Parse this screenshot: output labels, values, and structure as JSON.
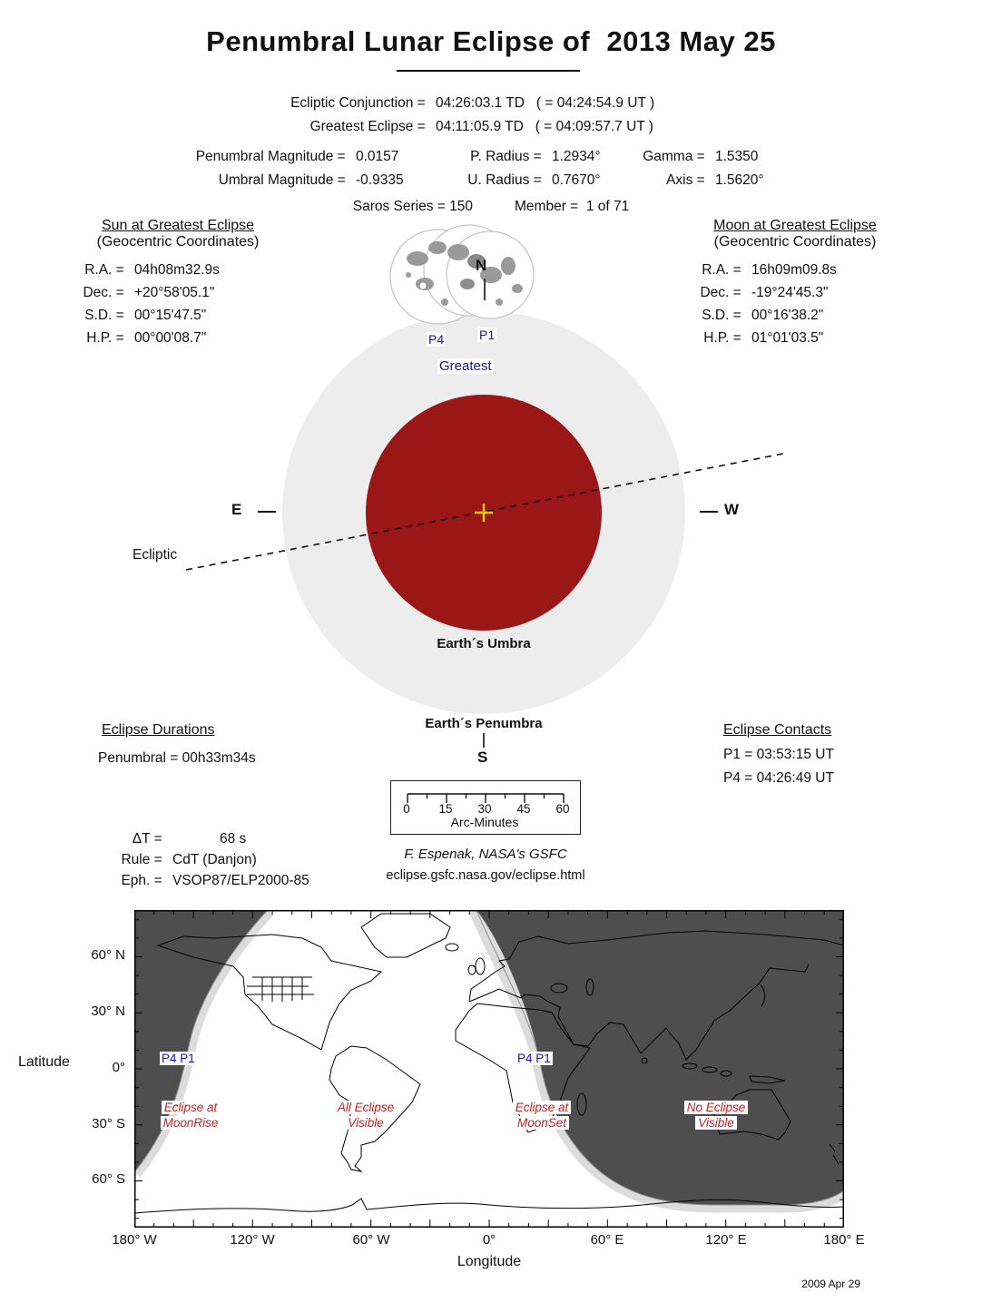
{
  "title": "Penumbral Lunar Eclipse of  2013 May 25",
  "conjunction": {
    "rows": [
      {
        "label": "Ecliptic Conjunction = ",
        "value": "04:26:03.1 TD   ( = 04:24:54.9 UT )"
      },
      {
        "label": "Greatest Eclipse = ",
        "value": "04:11:05.9 TD   ( = 04:09:57.7 UT )"
      }
    ]
  },
  "params": {
    "magnitude": [
      {
        "label": "Penumbral Magnitude = ",
        "value": "0.0157"
      },
      {
        "label": "Umbral Magnitude = ",
        "value": "-0.9335"
      }
    ],
    "radius": [
      {
        "label": "P. Radius = ",
        "value": "1.2934°"
      },
      {
        "label": "U. Radius = ",
        "value": "0.7670°"
      }
    ],
    "geometry": [
      {
        "label": "Gamma = ",
        "value": "1.5350"
      },
      {
        "label": "Axis = ",
        "value": "1.5620°"
      }
    ],
    "saros": "Saros Series = 150",
    "member": "Member =  1 of 71"
  },
  "sun": {
    "title": "Sun at Greatest Eclipse",
    "subtitle": "(Geocentric Coordinates)",
    "rows": [
      {
        "label": "R.A. = ",
        "value": "04h08m32.9s"
      },
      {
        "label": "Dec. = ",
        "value": "+20°58'05.1\""
      },
      {
        "label": "S.D. = ",
        "value": "00°15'47.5\""
      },
      {
        "label": "H.P. = ",
        "value": "00°00'08.7\""
      }
    ]
  },
  "moon": {
    "title": "Moon at Greatest Eclipse",
    "subtitle": "(Geocentric Coordinates)",
    "rows": [
      {
        "label": "R.A. = ",
        "value": "16h09m09.8s"
      },
      {
        "label": "Dec. = ",
        "value": "-19°24'45.3\""
      },
      {
        "label": "S.D. = ",
        "value": "00°16'38.2\""
      },
      {
        "label": "H.P. = ",
        "value": "01°01'03.5\""
      }
    ]
  },
  "diagram": {
    "compass": {
      "n": "N",
      "s": "S",
      "e": "E",
      "w": "W"
    },
    "contact_p4": "P4",
    "contact_p1": "P1",
    "greatest_label": "Greatest",
    "ecliptic_label": "Ecliptic",
    "umbra_label": "Earth´s Umbra",
    "penumbra_label": "Earth´s Penumbra",
    "umbra_color": "#9B1717",
    "penumbra_color": "#EDEDED",
    "center_cross_color": "#F0C800",
    "label_blue": "#1414B8"
  },
  "durations": {
    "title": "Eclipse Durations",
    "penumbral": "Penumbral = 00h33m34s"
  },
  "contacts": {
    "title": "Eclipse Contacts",
    "p1": "P1 = 03:53:15 UT",
    "p4": "P4 = 04:26:49 UT"
  },
  "scalebar": {
    "ticks": [
      "0",
      "15",
      "30",
      "45",
      "60"
    ],
    "unit": "Arc-Minutes"
  },
  "computation": {
    "rows": [
      {
        "label": "ΔT = ",
        "value": "68 s"
      },
      {
        "label": "Rule = ",
        "value": "CdT (Danjon)"
      },
      {
        "label": "Eph. = ",
        "value": "VSOP87/ELP2000-85"
      }
    ]
  },
  "credit": {
    "author": "F. Espenak, NASA's GSFC",
    "url": "eclipse.gsfc.nasa.gov/eclipse.html"
  },
  "map": {
    "ylabel": "Latitude",
    "xlabel": "Longitude",
    "lat_ticks": [
      "60° N",
      "30° N",
      "0°",
      "30° S",
      "60° S"
    ],
    "lon_ticks": [
      "180° W",
      "120° W",
      "60° W",
      "0°",
      "60° E",
      "120° E",
      "180° E"
    ],
    "contact_labels": {
      "west": "P4 P1",
      "east": "P4 P1"
    },
    "zones": [
      {
        "line1": "Eclipse at",
        "line2": "MoonRise"
      },
      {
        "line1": "All Eclipse",
        "line2": "Visible"
      },
      {
        "line1": "Eclipse at",
        "line2": "MoonSet"
      },
      {
        "line1": "No Eclipse",
        "line2": "Visible"
      }
    ],
    "colors": {
      "no_eclipse_fill": "#4E4E4E",
      "penumbra_band": "#DCDCDC",
      "zone_label_red": "#CC2020",
      "contact_label_blue": "#1414B8"
    }
  },
  "date_stamp": "2009 Apr 29"
}
